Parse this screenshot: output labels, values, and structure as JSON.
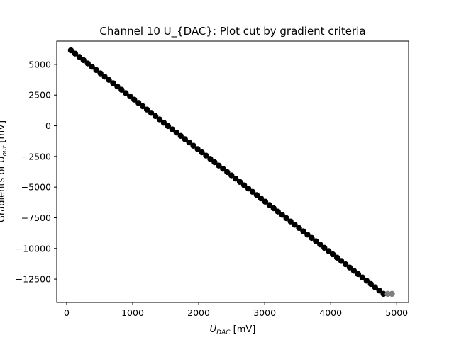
{
  "chart_data": {
    "type": "scatter",
    "title": "Channel 10 U_{DAC}: Plot cut by gradient criteria",
    "xlabel": {
      "main": "U",
      "sub": "DAC",
      "unit": " [mV]"
    },
    "ylabel": {
      "prefix": "Gradients of U",
      "sub": "out",
      "unit": " [mV]"
    },
    "xlim": [
      -150,
      5180
    ],
    "ylim": [
      -14400,
      6900
    ],
    "xticks": [
      0,
      1000,
      2000,
      3000,
      4000,
      5000
    ],
    "yticks": [
      5000,
      2500,
      0,
      -2500,
      -5000,
      -7500,
      -10000,
      -12500
    ],
    "grid": false,
    "colors": {
      "kept": "#000000",
      "cut": "#808080",
      "axes": "#000000",
      "background": "#ffffff"
    },
    "series": [
      {
        "x_start": 64,
        "x_end": 4800,
        "x_step": 64,
        "y_at_start": 6150,
        "y_at_end": -13700,
        "color": "#000000"
      },
      {
        "x_start": 4864,
        "x_end": 4928,
        "x_step": 64,
        "y_at_start": -13700,
        "y_at_end": -13700,
        "color": "#808080"
      }
    ]
  }
}
